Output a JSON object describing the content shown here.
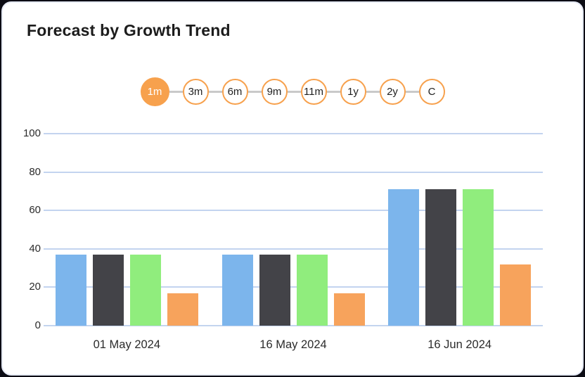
{
  "card": {
    "title": "Forecast by Growth Trend"
  },
  "range_selector": {
    "options": [
      {
        "label": "1m",
        "active": true
      },
      {
        "label": "3m",
        "active": false
      },
      {
        "label": "6m",
        "active": false
      },
      {
        "label": "9m",
        "active": false
      },
      {
        "label": "11m",
        "active": false
      },
      {
        "label": "1y",
        "active": false
      },
      {
        "label": "2y",
        "active": false
      },
      {
        "label": "C",
        "active": false
      }
    ]
  },
  "colors": {
    "accent_orange": "#f7a14d",
    "connector_gray": "#c9c9c9",
    "gridline_blue": "#c3d4ef",
    "title_text": "#1c1c1c",
    "axis_text": "#2b2b2b",
    "card_bg": "#ffffff",
    "card_border": "#e6eaf6",
    "frame_bg": "#0c0c14"
  },
  "chart_data": {
    "type": "bar",
    "title": "Forecast by Growth Trend",
    "categories": [
      "01 May 2024",
      "16 May 2024",
      "16 Jun 2024"
    ],
    "series": [
      {
        "name": "blue",
        "color": "#7cb5ec",
        "values": [
          37,
          37,
          71
        ]
      },
      {
        "name": "dark-gray",
        "color": "#434348",
        "values": [
          37,
          37,
          71
        ]
      },
      {
        "name": "green",
        "color": "#90ed7d",
        "values": [
          37,
          37,
          71
        ]
      },
      {
        "name": "orange",
        "color": "#f7a35c",
        "values": [
          17,
          17,
          32
        ]
      }
    ],
    "xlabel": "",
    "ylabel": "",
    "ylim": [
      0,
      100
    ],
    "yticks": [
      0,
      20,
      40,
      60,
      80,
      100
    ],
    "grid": true,
    "legend": "none"
  }
}
